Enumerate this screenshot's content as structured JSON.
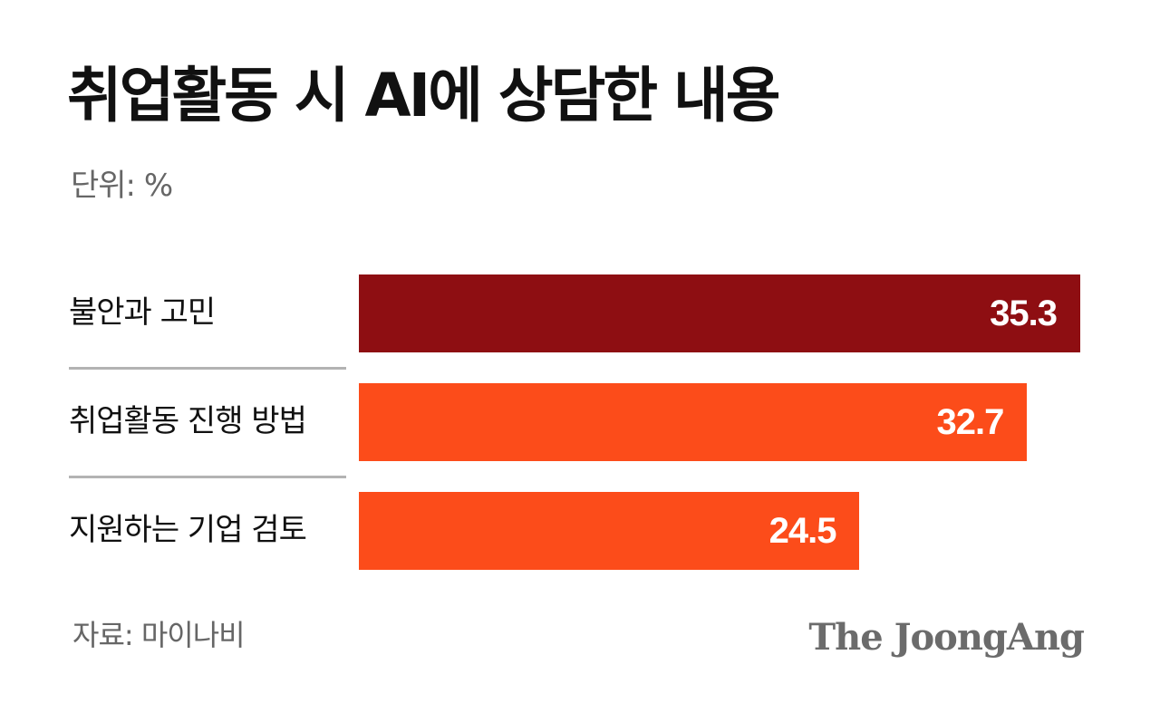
{
  "chart_data": {
    "type": "bar",
    "orientation": "horizontal",
    "title": "취업활동 시 AI에 상담한 내용",
    "unit_label": "단위: %",
    "categories": [
      "불안과 고민",
      "취업활동 진행 방법",
      "지원하는 기업 검토"
    ],
    "values": [
      35.3,
      32.7,
      24.5
    ],
    "value_labels": [
      "35.3",
      "32.7",
      "24.5"
    ],
    "bar_colors": [
      "#8e0e12",
      "#fc4c1a",
      "#fc4c1a"
    ],
    "xlim": [
      0,
      35.3
    ],
    "source": "자료: 마이나비",
    "logo": "The JoongAng"
  }
}
